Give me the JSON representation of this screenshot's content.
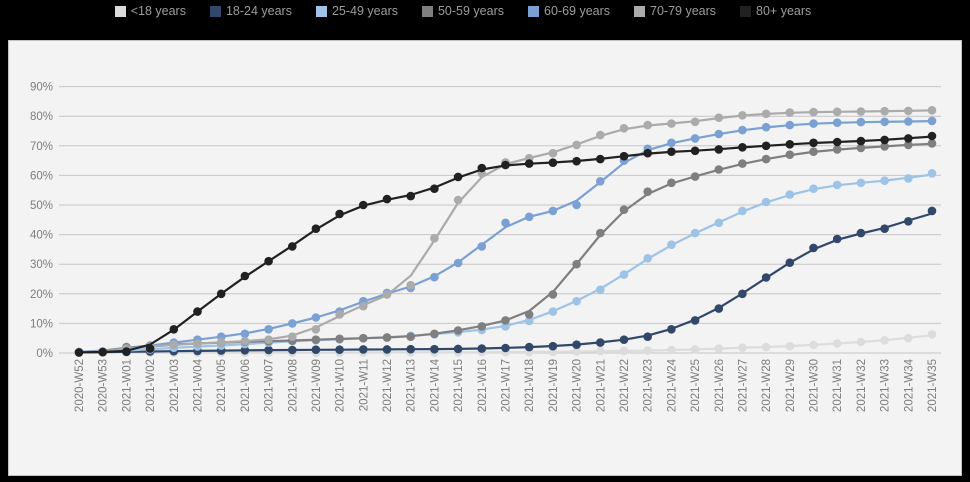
{
  "window": {
    "title": ""
  },
  "style": {
    "background": "#000000",
    "panel_background": "#f3f3f3",
    "panel_border": "#c2c2c2",
    "gridline": "#c6c6c6",
    "tick_text": "#7d7d7d",
    "legend_text": "#9c9c9c"
  },
  "chart_data": {
    "type": "line",
    "title": "",
    "xlabel": "",
    "ylabel": "",
    "marker": "circle",
    "grid": true,
    "legend_position": "top",
    "ylim": [
      0,
      95
    ],
    "y_ticks": [
      {
        "value": 0,
        "label": "0%"
      },
      {
        "value": 10,
        "label": "10%"
      },
      {
        "value": 20,
        "label": "20%"
      },
      {
        "value": 30,
        "label": "30%"
      },
      {
        "value": 40,
        "label": "40%"
      },
      {
        "value": 50,
        "label": "50%"
      },
      {
        "value": 60,
        "label": "60%"
      },
      {
        "value": 70,
        "label": "70%"
      },
      {
        "value": 80,
        "label": "80%"
      },
      {
        "value": 90,
        "label": "90%"
      }
    ],
    "x_categories": [
      "2020-W52",
      "2020-W53",
      "2021-W01",
      "2021-W02",
      "2021-W03",
      "2021-W04",
      "2021-W05",
      "2021-W06",
      "2021-W07",
      "2021-W08",
      "2021-W09",
      "2021-W10",
      "2021-W11",
      "2021-W12",
      "2021-W13",
      "2021-W14",
      "2021-W15",
      "2021-W16",
      "2021-W17",
      "2021-W18",
      "2021-W19",
      "2021-W20",
      "2021-W21",
      "2021-W22",
      "2021-W23",
      "2021-W24",
      "2021-W25",
      "2021-W26",
      "2021-W27",
      "2021-W28",
      "2021-W29",
      "2021-W30",
      "2021-W31",
      "2021-W32",
      "2021-W33",
      "2021-W34",
      "2021-W35"
    ],
    "series": [
      {
        "name": "<18 years",
        "color": "#dcdcdc",
        "values": [
          0.1,
          0.1,
          0.1,
          0.1,
          0.1,
          0.1,
          0.1,
          0.1,
          0.1,
          0.1,
          0.1,
          0.1,
          0.2,
          0.2,
          0.2,
          0.2,
          0.2,
          0.3,
          0.3,
          0.3,
          0.4,
          0.5,
          0.6,
          0.7,
          0.8,
          1,
          1.2,
          1.5,
          1.8,
          2,
          2.3,
          2.7,
          3.2,
          3.7,
          4.3,
          5,
          6.3
        ]
      },
      {
        "name": "18-24 years",
        "color": "#32486b",
        "values": [
          0.2,
          0.3,
          0.4,
          0.5,
          0.6,
          0.7,
          0.8,
          0.9,
          1,
          1,
          1.1,
          1.1,
          1.2,
          1.2,
          1.3,
          1.3,
          1.4,
          1.5,
          1.7,
          2,
          2.3,
          2.8,
          3.5,
          4.5,
          5.5,
          8,
          11,
          15,
          20,
          25.5,
          30.5,
          35.5,
          38.5,
          40.5,
          42,
          44.5,
          48
        ]
      },
      {
        "name": "25-49 years",
        "color": "#9dc3e6",
        "values": [
          0.3,
          0.5,
          0.8,
          1.2,
          1.8,
          2.2,
          2.5,
          3,
          3.5,
          4,
          4.3,
          4.6,
          5,
          5.3,
          5.8,
          6.3,
          7,
          7.8,
          9,
          10.8,
          14,
          17.5,
          21.4,
          26.5,
          32,
          36.6,
          40.5,
          44,
          48,
          51,
          53.5,
          55.5,
          56.8,
          57.5,
          58.2,
          59,
          60.7
        ]
      },
      {
        "name": "50-59 years",
        "color": "#7f7f7f",
        "values": [
          0.3,
          0.5,
          2,
          2.5,
          3,
          3.2,
          3.5,
          3.8,
          4,
          4.2,
          4.5,
          4.8,
          5,
          5.2,
          5.5,
          6.5,
          7.6,
          9,
          11,
          13,
          19.8,
          30,
          40.5,
          48.4,
          54.5,
          57.5,
          59.6,
          62,
          64,
          65.5,
          67,
          68,
          68.8,
          69.3,
          69.8,
          70.3,
          70.8
        ]
      },
      {
        "name": "60-69 years",
        "color": "#7aa0d4",
        "values": [
          0.3,
          0.5,
          1.5,
          2.5,
          3.5,
          4.5,
          5.5,
          6.5,
          8,
          10,
          12,
          14,
          17.5,
          20.3,
          22,
          25.6,
          30.4,
          36,
          44,
          46,
          48,
          50,
          58,
          65,
          69,
          71,
          72.5,
          74,
          75.3,
          76.3,
          77,
          77.5,
          77.8,
          78,
          78.1,
          78.2,
          78.4
        ]
      },
      {
        "name": "70-79 years",
        "color": "#ababab",
        "values": [
          0.2,
          0.3,
          1.5,
          2.2,
          2.8,
          3.2,
          3.6,
          4,
          4.5,
          5.5,
          8,
          13,
          15.8,
          19.8,
          22.9,
          38.8,
          51.7,
          60.7,
          64.4,
          65.8,
          67.5,
          70.3,
          73.6,
          75.9,
          77,
          77.5,
          78.1,
          79.5,
          80.3,
          80.8,
          81.2,
          81.4,
          81.5,
          81.6,
          81.7,
          81.8,
          82
        ]
      },
      {
        "name": "80+ years",
        "color": "#212121",
        "values": [
          0.2,
          0.3,
          0.5,
          1.5,
          8,
          14,
          20,
          26,
          31,
          36,
          42,
          47,
          50,
          52,
          53,
          55.5,
          59.5,
          62.5,
          63.5,
          64,
          64.3,
          64.8,
          65.5,
          66.5,
          67.5,
          68,
          68.3,
          68.8,
          69.5,
          70,
          70.5,
          71,
          71.3,
          71.6,
          72,
          72.5,
          73.3
        ]
      }
    ]
  }
}
